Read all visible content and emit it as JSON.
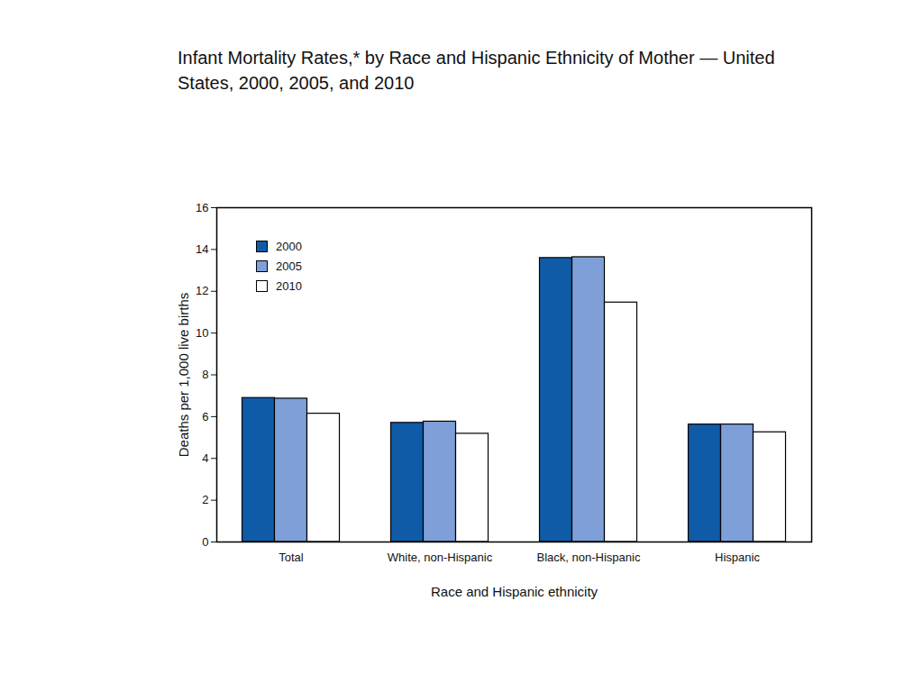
{
  "chart_data": {
    "type": "bar",
    "title": "Infant Mortality Rates,* by Race and Hispanic Ethnicity of Mother — United States, 2000, 2005, and 2010",
    "categories": [
      "Total",
      "White, non-Hispanic",
      "Black, non-Hispanic",
      "Hispanic"
    ],
    "series": [
      {
        "name": "2000",
        "color": "#0f5ba7",
        "values": [
          6.89,
          5.7,
          13.59,
          5.62
        ]
      },
      {
        "name": "2005",
        "color": "#7f9fd8",
        "values": [
          6.86,
          5.76,
          13.63,
          5.62
        ]
      },
      {
        "name": "2010",
        "color": "#ffffff",
        "values": [
          6.14,
          5.18,
          11.46,
          5.25
        ]
      }
    ],
    "xlabel": "Race and Hispanic ethnicity",
    "ylabel": "Deaths per 1,000 live births",
    "ylim": [
      0,
      16
    ],
    "yticks": [
      0,
      2,
      4,
      6,
      8,
      10,
      12,
      14,
      16
    ],
    "legend": "top-left"
  }
}
